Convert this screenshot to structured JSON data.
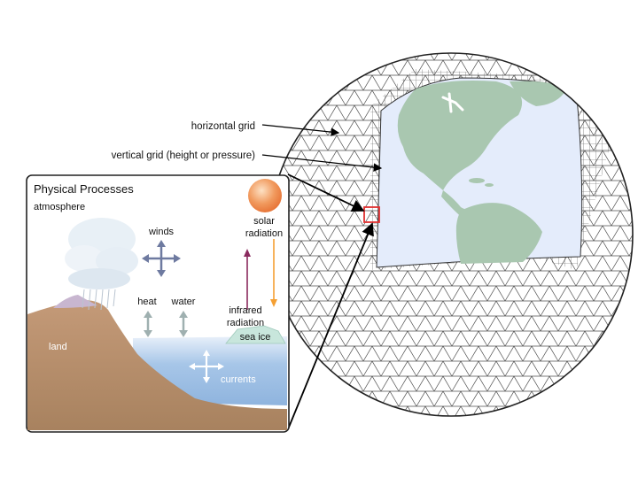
{
  "annotations": {
    "horizontal_grid": "horizontal grid",
    "vertical_grid": "vertical grid (height or pressure)"
  },
  "inset": {
    "title": "Physical Processes",
    "atmosphere": "atmosphere",
    "winds": "winds",
    "solar_radiation_line1": "solar",
    "solar_radiation_line2": "radiation",
    "heat": "heat",
    "water": "water",
    "infrared_line1": "infrared",
    "infrared_line2": "radiation",
    "land": "land",
    "sea_ice": "sea ice",
    "currents": "currents"
  },
  "colors": {
    "ocean_globe": "#e4ecfb",
    "land_globe": "#a9c7b0",
    "ocean_inset": "#a7c6e8",
    "land_inset": "#b89072",
    "sun": "#f19a5e",
    "solar_arrow": "#f5a033",
    "infrared_arrow": "#8a2a5e",
    "cell_highlight": "#e03030",
    "grid_line": "#4a4a4a"
  }
}
